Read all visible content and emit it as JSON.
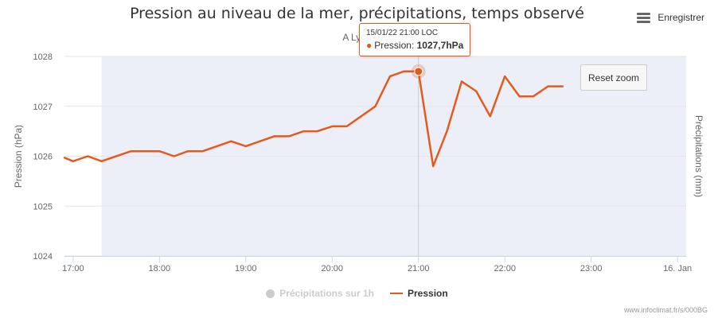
{
  "header": {
    "title": "Pression au niveau de la mer, précipitations, temps observé",
    "subtitle": "A Lyon",
    "menu_label": "Enregistrer",
    "menu_icon": "hamburger-icon"
  },
  "reset_zoom_label": "Reset zoom",
  "tooltip": {
    "time": "15/01/22 21:00 LOC",
    "series": "Pression",
    "value": "1027,7hPa"
  },
  "legend": [
    {
      "name": "Précipitations sur 1h",
      "visible": false,
      "color": "#cccccc"
    },
    {
      "name": "Pression",
      "visible": true,
      "color": "#e6591d"
    }
  ],
  "credits": "www.infoclimat.fr/s/000BG",
  "chart_data": {
    "type": "line",
    "ylabel": "Pression (hPa)",
    "ylabel_right": "Précipitations (mm)",
    "ylim": [
      1024,
      1028
    ],
    "y_ticks": [
      "1024",
      "1025",
      "1026",
      "1027",
      "1028"
    ],
    "x_ticks": [
      "17:00",
      "18:00",
      "19:00",
      "20:00",
      "21:00",
      "22:00",
      "23:00",
      "16. Jan"
    ],
    "x_range_hours": [
      16.9,
      24.1
    ],
    "highlight_band_hours": [
      17.33,
      24.1
    ],
    "crosshair_hour": 21.0,
    "grid": true,
    "legend_position": "bottom-center",
    "series": [
      {
        "name": "Pression",
        "color": "#e6591d",
        "x": [
          16.9,
          17.0,
          17.17,
          17.33,
          17.67,
          18.0,
          18.17,
          18.33,
          18.5,
          18.83,
          19.0,
          19.33,
          19.5,
          19.67,
          19.83,
          20.0,
          20.17,
          20.5,
          20.67,
          20.83,
          21.0,
          21.17,
          21.33,
          21.5,
          21.67,
          21.83,
          22.0,
          22.17,
          22.33,
          22.5,
          22.67
        ],
        "values": [
          1025.97,
          1025.9,
          1026.0,
          1025.9,
          1026.1,
          1026.1,
          1026.0,
          1026.1,
          1026.1,
          1026.3,
          1026.2,
          1026.4,
          1026.4,
          1026.5,
          1026.5,
          1026.6,
          1026.6,
          1027.0,
          1027.6,
          1027.7,
          1027.7,
          1025.8,
          1026.5,
          1027.5,
          1027.3,
          1026.8,
          1027.6,
          1027.2,
          1027.2,
          1027.4,
          1027.4
        ]
      },
      {
        "name": "Précipitations sur 1h",
        "color": "#cccccc",
        "x": [],
        "values": []
      }
    ]
  }
}
